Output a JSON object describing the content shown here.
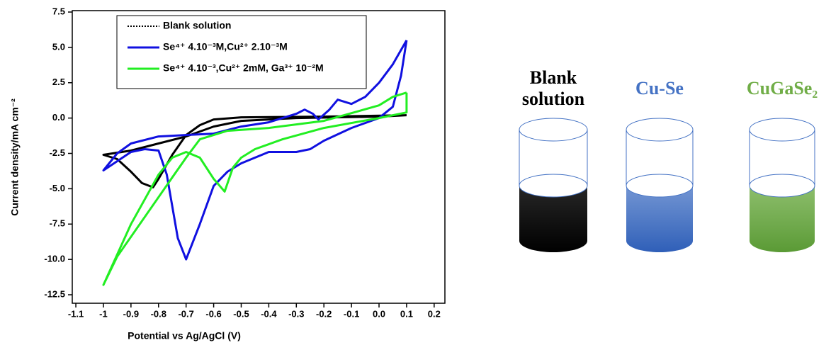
{
  "chart_data": {
    "type": "line",
    "x_label": "Potential vs Ag/AgCl (V)",
    "y_label": "Current density/mA cm⁻²",
    "xlim": [
      -1.113,
      0.239
    ],
    "ylim": [
      -13.1,
      7.6
    ],
    "xticks": [
      -1.1,
      -1,
      -0.9,
      -0.8,
      -0.7,
      -0.6,
      -0.5,
      -0.4,
      -0.3,
      -0.2,
      -0.1,
      {
        "value": 0,
        "label": "0.0"
      },
      0.1,
      0.2
    ],
    "xtick_labels_override": null,
    "yticks": [
      7.5,
      {
        "value": 5,
        "label": "5.0"
      },
      2.5,
      {
        "value": 0,
        "label": "0.0"
      },
      -2.5,
      {
        "value": -5,
        "label": "-5.0"
      },
      -7.5,
      {
        "value": -10,
        "label": "-10.0"
      },
      -12.5
    ],
    "series": [
      {
        "name": "Blank solution",
        "color": "#000000",
        "x": [
          0.1,
          -0.2,
          -0.5,
          -0.6,
          -0.65,
          -0.7,
          -0.75,
          -0.8,
          -0.82,
          -0.86,
          -0.9,
          -0.95,
          -1.0,
          -0.9,
          -0.8,
          -0.7,
          -0.6,
          -0.5,
          -0.3,
          0,
          0.1
        ],
        "values": [
          0.2,
          0.1,
          0.05,
          -0.1,
          -0.5,
          -1.2,
          -2.6,
          -4.3,
          -4.9,
          -4.6,
          -3.8,
          -2.9,
          -2.6,
          -2.3,
          -1.8,
          -1.3,
          -0.6,
          -0.2,
          0,
          0.1,
          0.2
        ]
      },
      {
        "name": "Se⁴⁺ 4.10⁻³M,Cu²⁺ 2.10⁻³M",
        "color": "#1010e0",
        "x": [
          0.1,
          0.08,
          0.05,
          0,
          -0.1,
          -0.2,
          -0.25,
          -0.3,
          -0.4,
          -0.5,
          -0.55,
          -0.6,
          -0.65,
          -0.7,
          -0.73,
          -0.77,
          -0.8,
          -0.85,
          -0.9,
          -1.0,
          -0.95,
          -0.9,
          -0.8,
          -0.6,
          -0.5,
          -0.4,
          -0.3,
          -0.27,
          -0.24,
          -0.22,
          -0.18,
          -0.15,
          -0.1,
          -0.05,
          0,
          0.05,
          0.1
        ],
        "values": [
          5.5,
          3,
          0.8,
          0,
          -0.7,
          -1.6,
          -2.2,
          -2.4,
          -2.4,
          -3.2,
          -3.8,
          -4.8,
          -7.5,
          -10,
          -8.5,
          -4,
          -2.3,
          -2.2,
          -2.4,
          -3.7,
          -2.5,
          -1.8,
          -1.3,
          -1.1,
          -0.6,
          -0.3,
          0.3,
          0.6,
          0.3,
          -0.1,
          0.6,
          1.3,
          1.0,
          1.5,
          2.5,
          3.8,
          5.5
        ]
      },
      {
        "name": "Se⁴⁺ 4.10⁻³,Cu²⁺ 2mM, Ga³⁺ 10⁻²M",
        "color": "#22ee22",
        "x": [
          0.1,
          0.1,
          0,
          -0.2,
          -0.35,
          -0.45,
          -0.5,
          -0.53,
          -0.56,
          -0.6,
          -0.65,
          -0.7,
          -0.75,
          -0.8,
          -0.9,
          -1.0,
          -0.95,
          -0.85,
          -0.75,
          -0.7,
          -0.65,
          -0.55,
          -0.4,
          -0.2,
          0,
          0.05,
          0.1
        ],
        "values": [
          1.8,
          0.4,
          0,
          -0.7,
          -1.5,
          -2.2,
          -2.8,
          -3.5,
          -5.2,
          -4.3,
          -2.8,
          -2.4,
          -2.8,
          -4,
          -7.5,
          -11.8,
          -9.8,
          -7,
          -4.2,
          -2.8,
          -1.5,
          -0.9,
          -0.7,
          -0.2,
          0.9,
          1.5,
          1.8
        ]
      }
    ]
  },
  "beakers": [
    {
      "label": "Blank solution",
      "color": "#000000"
    },
    {
      "label": "Cu-Se",
      "color": "#4472c4"
    },
    {
      "label": "CuGaSe₂",
      "color": "#70ad47"
    }
  ]
}
